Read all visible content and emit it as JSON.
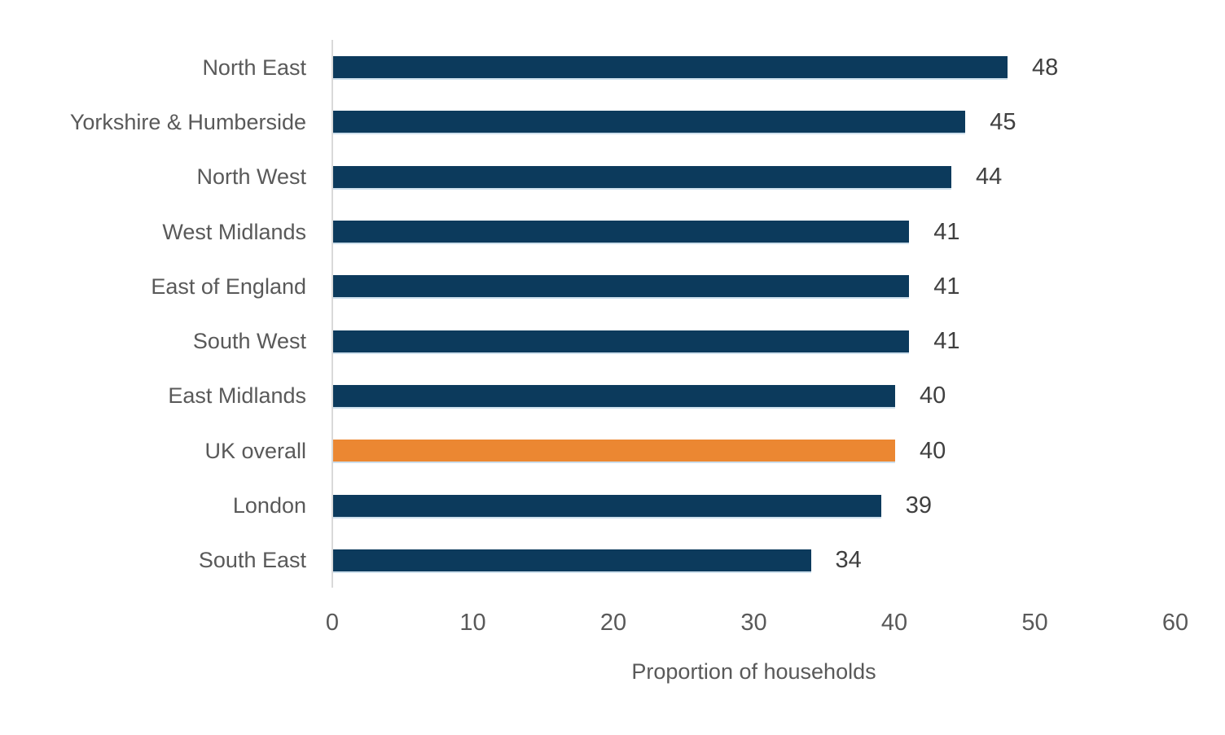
{
  "chart_data": {
    "type": "bar",
    "orientation": "horizontal",
    "title": "",
    "xlabel": "Proportion of households",
    "ylabel": "",
    "xlim": [
      0,
      60
    ],
    "xticks": [
      0,
      10,
      20,
      30,
      40,
      50,
      60
    ],
    "grid": false,
    "legend": false,
    "categories": [
      "North East",
      "Yorkshire & Humberside",
      "North West",
      "West Midlands",
      "East of England",
      "South West",
      "East Midlands",
      "UK overall",
      "London",
      "South East"
    ],
    "values": [
      48,
      45,
      44,
      41,
      41,
      41,
      40,
      40,
      39,
      34
    ],
    "data_labels": [
      "48",
      "45",
      "44",
      "41",
      "41",
      "41",
      "40",
      "40",
      "39",
      "34"
    ],
    "highlighted_category": "UK overall",
    "highlight_index": 7,
    "colors": {
      "bar": "#0C3A5C",
      "highlight_bar": "#EB8732",
      "category_label": "#595959",
      "value_label": "#404040",
      "tick_label": "#595959",
      "axis_title": "#595959",
      "axis_line": "#D9D9D9",
      "background": "#FFFFFF"
    }
  }
}
